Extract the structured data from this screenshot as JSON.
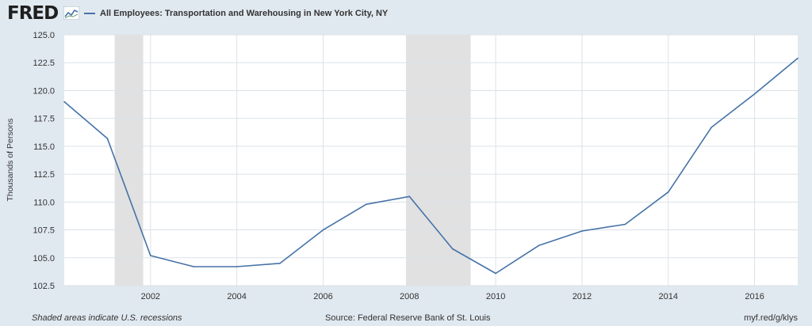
{
  "header": {
    "logo_text": "FRED",
    "logo_icon": "fred-graph-icon",
    "series_title": "All Employees: Transportation and Warehousing in New York City, NY"
  },
  "colors": {
    "background": "#e1e9f0",
    "plot_background": "#ffffff",
    "series_line": "#4572a7",
    "recession_shade": "#e1e1e1",
    "grid": "#dbe2e8"
  },
  "footer": {
    "note": "Shaded areas indicate U.S. recessions",
    "source": "Source: Federal Reserve Bank of St. Louis",
    "link": "myf.red/g/klys"
  },
  "chart_data": {
    "type": "line",
    "title": "",
    "xlabel": "",
    "ylabel": "Thousands of Persons",
    "x": [
      2000,
      2001,
      2002,
      2003,
      2004,
      2005,
      2006,
      2007,
      2008,
      2009,
      2010,
      2011,
      2012,
      2013,
      2014,
      2015,
      2016,
      2017
    ],
    "series": [
      {
        "name": "All Employees: Transportation and Warehousing in New York City, NY",
        "values": [
          119.0,
          115.7,
          105.2,
          104.2,
          104.2,
          104.5,
          107.5,
          109.8,
          110.5,
          105.8,
          103.6,
          106.1,
          107.4,
          108.0,
          110.9,
          116.7,
          119.7,
          122.9
        ]
      }
    ],
    "xlim": [
      2000,
      2017
    ],
    "ylim": [
      102.5,
      125.0
    ],
    "yticks": [
      "102.5",
      "105.0",
      "107.5",
      "110.0",
      "112.5",
      "115.0",
      "117.5",
      "120.0",
      "122.5",
      "125.0"
    ],
    "xticks": [
      "2002",
      "2004",
      "2006",
      "2008",
      "2010",
      "2012",
      "2014",
      "2016"
    ],
    "recessions": [
      [
        2001.17,
        2001.83
      ],
      [
        2007.92,
        2009.42
      ]
    ],
    "grid": true,
    "legend": "top-left"
  }
}
